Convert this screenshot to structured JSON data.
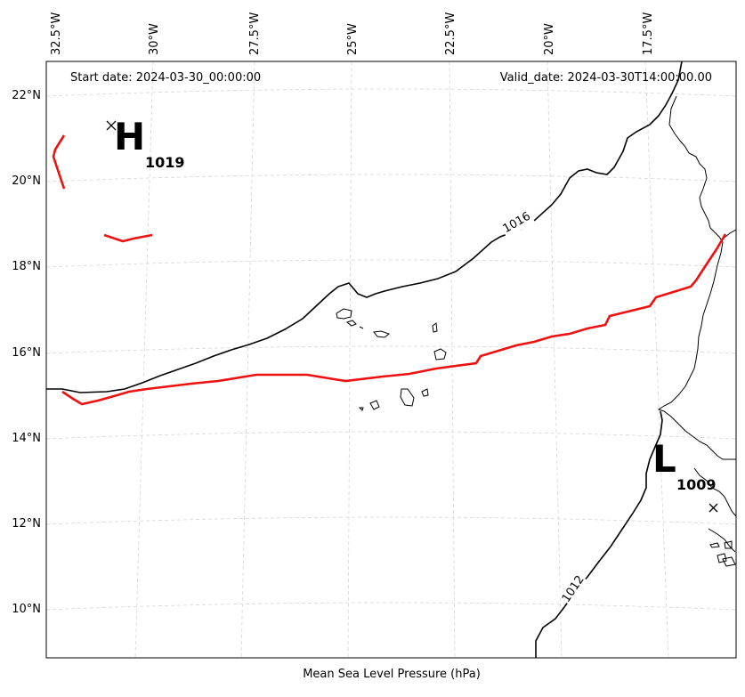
{
  "header": {
    "start_date": "Start date: 2024-03-30_00:00:00",
    "valid_date": "Valid_date: 2024-03-30T14:00:00.00"
  },
  "footer": {
    "xlabel": "Mean Sea Level Pressure (hPa)"
  },
  "axes": {
    "lon_ticks": [
      "32.5°W",
      "30°W",
      "27.5°W",
      "25°W",
      "22.5°W",
      "20°W",
      "17.5°W"
    ],
    "lat_ticks": [
      "22°N",
      "20°N",
      "18°N",
      "16°N",
      "14°N",
      "12°N",
      "10°N"
    ]
  },
  "pressure_centers": {
    "high": {
      "symbol": "H",
      "value": "1019"
    },
    "low": {
      "symbol": "L",
      "value": "1009"
    }
  },
  "contour_labels": {
    "c1016": "1016",
    "c1012": "1012"
  },
  "colors": {
    "highlight_contour": "#ee1111",
    "contour": "#000000",
    "grid": "#d0d0d0"
  }
}
